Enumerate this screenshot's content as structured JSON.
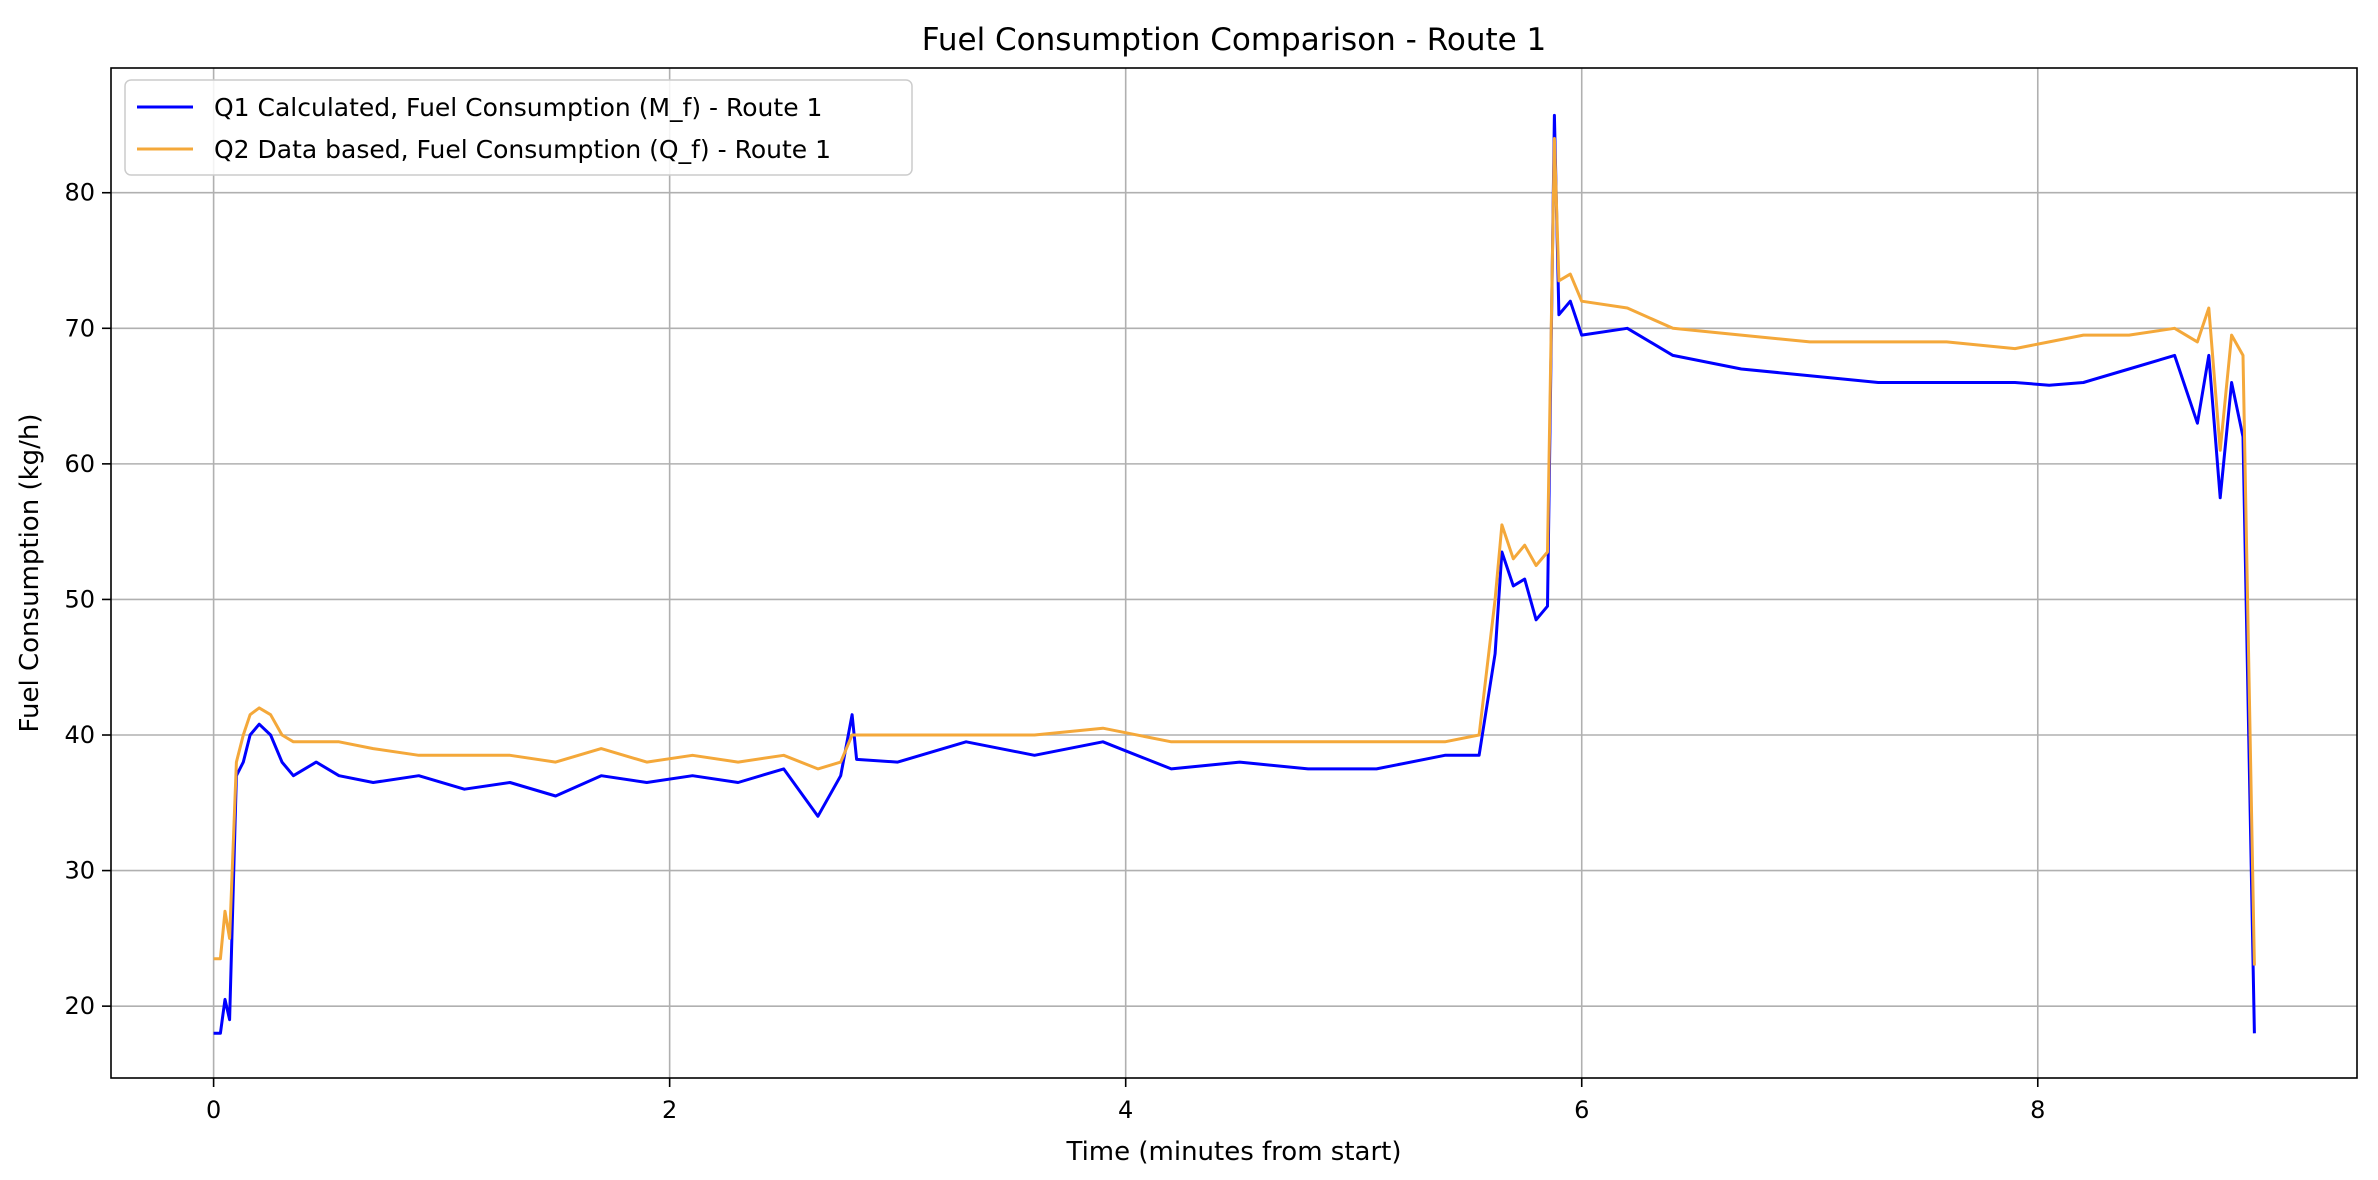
{
  "chart_data": {
    "type": "line",
    "title": "Fuel Consumption Comparison - Route 1",
    "xlabel": "Time (minutes from start)",
    "ylabel": "Fuel Consumption (kg/h)",
    "xlim": [
      -0.45,
      9.4
    ],
    "ylim": [
      14.7,
      89.2
    ],
    "xticks": [
      0,
      2,
      4,
      6,
      8
    ],
    "yticks": [
      20,
      30,
      40,
      50,
      60,
      70,
      80
    ],
    "grid": true,
    "legend_position": "upper-left",
    "series": [
      {
        "name": "Q1 Calculated, Fuel Consumption (M_f) - Route 1",
        "color": "#0000ff",
        "x": [
          0,
          0.03,
          0.05,
          0.07,
          0.1,
          0.13,
          0.16,
          0.2,
          0.25,
          0.3,
          0.35,
          0.45,
          0.55,
          0.7,
          0.9,
          1.1,
          1.3,
          1.5,
          1.7,
          1.9,
          2.1,
          2.3,
          2.5,
          2.65,
          2.75,
          2.8,
          2.82,
          3.0,
          3.3,
          3.6,
          3.9,
          4.2,
          4.5,
          4.8,
          5.1,
          5.4,
          5.55,
          5.62,
          5.65,
          5.7,
          5.75,
          5.8,
          5.85,
          5.88,
          5.9,
          5.95,
          6.0,
          6.2,
          6.4,
          6.7,
          7.0,
          7.3,
          7.6,
          7.9,
          8.05,
          8.2,
          8.4,
          8.6,
          8.7,
          8.75,
          8.8,
          8.85,
          8.9,
          8.95
        ],
        "y": [
          18,
          18,
          20.5,
          19,
          37,
          38,
          40,
          40.8,
          40,
          38,
          37,
          38,
          37,
          36.5,
          37,
          36,
          36.5,
          35.5,
          37,
          36.5,
          37,
          36.5,
          37.5,
          34,
          37,
          41.5,
          38.2,
          38,
          39.5,
          38.5,
          39.5,
          37.5,
          38,
          37.5,
          37.5,
          38.5,
          38.5,
          46,
          53.5,
          51,
          51.5,
          48.5,
          49.5,
          85.7,
          71,
          72,
          69.5,
          70,
          68,
          67,
          66.5,
          66,
          66,
          66,
          65.8,
          66,
          67,
          68,
          63,
          68,
          57.5,
          66,
          62,
          18
        ]
      },
      {
        "name": "Q2 Data based, Fuel Consumption (Q_f) - Route 1",
        "color": "#f4a83a",
        "x": [
          0,
          0.03,
          0.05,
          0.07,
          0.1,
          0.13,
          0.16,
          0.2,
          0.25,
          0.3,
          0.35,
          0.45,
          0.55,
          0.7,
          0.9,
          1.1,
          1.3,
          1.5,
          1.7,
          1.9,
          2.1,
          2.3,
          2.5,
          2.65,
          2.75,
          2.8,
          2.82,
          3.0,
          3.3,
          3.6,
          3.9,
          4.2,
          4.5,
          4.8,
          5.1,
          5.4,
          5.55,
          5.62,
          5.65,
          5.7,
          5.75,
          5.8,
          5.85,
          5.88,
          5.9,
          5.95,
          6.0,
          6.2,
          6.4,
          6.7,
          7.0,
          7.3,
          7.6,
          7.9,
          8.05,
          8.2,
          8.4,
          8.6,
          8.7,
          8.75,
          8.8,
          8.85,
          8.9,
          8.95
        ],
        "y": [
          23.5,
          23.5,
          27,
          25,
          38,
          40,
          41.5,
          42,
          41.5,
          40,
          39.5,
          39.5,
          39.5,
          39,
          38.5,
          38.5,
          38.5,
          38,
          39,
          38,
          38.5,
          38,
          38.5,
          37.5,
          38,
          40,
          40,
          40,
          40,
          40,
          40.5,
          39.5,
          39.5,
          39.5,
          39.5,
          39.5,
          40,
          50,
          55.5,
          53,
          54,
          52.5,
          53.5,
          84,
          73.5,
          74,
          72,
          71.5,
          70,
          69.5,
          69,
          69,
          69,
          68.5,
          69,
          69.5,
          69.5,
          70,
          69,
          71.5,
          61,
          69.5,
          68,
          23
        ]
      }
    ]
  }
}
